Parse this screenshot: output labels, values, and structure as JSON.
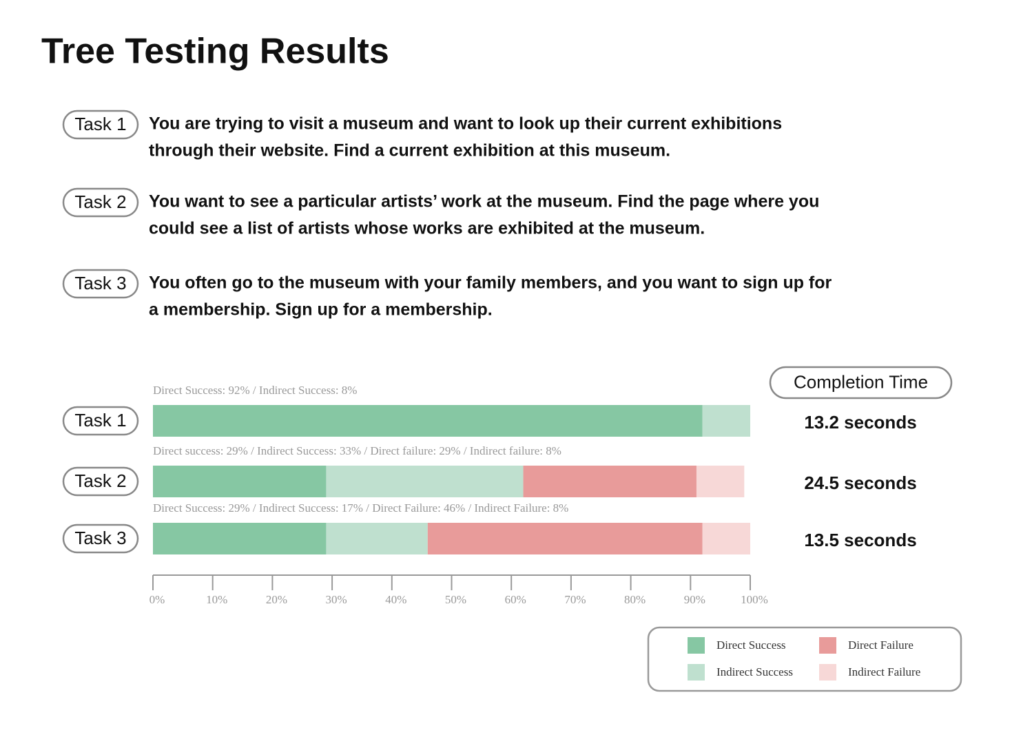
{
  "title": "Tree Testing Results",
  "tasks": [
    {
      "label": "Task 1",
      "lines": [
        "You are trying to visit a museum and want to look up their current exhibitions",
        "through their website. Find a current exhibition at this museum."
      ]
    },
    {
      "label": "Task 2",
      "lines": [
        "You want to see a particular artists’ work at the museum. Find the page where you",
        "could see a list of artists whose works are exhibited at the museum."
      ]
    },
    {
      "label": "Task 3",
      "lines": [
        "You often go to the museum with your family members, and you want to sign up for",
        "a membership. Sign up for a membership."
      ]
    }
  ],
  "chart_data": {
    "type": "stacked_bar",
    "orientation": "horizontal",
    "categories": [
      "Task 1",
      "Task 2",
      "Task 3"
    ],
    "annotations": [
      "Direct Success: 92% / Indirect Success: 8%",
      "Direct success: 29% / Indirect Success: 33% / Direct failure: 29% / Indirect failure:  8%",
      "Direct Success: 29% / Indirect Success: 17% / Direct Failure: 46% / Indirect Failure:  8%"
    ],
    "series": [
      {
        "name": "Direct Success",
        "color": "#86c7a3",
        "values": [
          92,
          29,
          29
        ]
      },
      {
        "name": "Indirect Success",
        "color": "#bfe0cf",
        "values": [
          8,
          33,
          17
        ]
      },
      {
        "name": "Direct Failure",
        "color": "#e89b9a",
        "values": [
          0,
          29,
          46
        ]
      },
      {
        "name": "Indirect Failure",
        "color": "#f7d8d7",
        "values": [
          0,
          8,
          8
        ]
      }
    ],
    "xlim": [
      0,
      100
    ],
    "xticks": [
      {
        "value": 0,
        "label": "0%"
      },
      {
        "value": 10,
        "label": "10%"
      },
      {
        "value": 20,
        "label": "20%"
      },
      {
        "value": 30,
        "label": "30%"
      },
      {
        "value": 40,
        "label": "40%"
      },
      {
        "value": 50,
        "label": "50%"
      },
      {
        "value": 60,
        "label": "60%"
      },
      {
        "value": 70,
        "label": "70%"
      },
      {
        "value": 80,
        "label": "80%"
      },
      {
        "value": 90,
        "label": "90%"
      },
      {
        "value": 100,
        "label": "100%"
      }
    ],
    "completion_time": {
      "title": "Completion Time",
      "labels": [
        "13.2 seconds",
        "24.5 seconds",
        "13.5 seconds"
      ]
    }
  }
}
